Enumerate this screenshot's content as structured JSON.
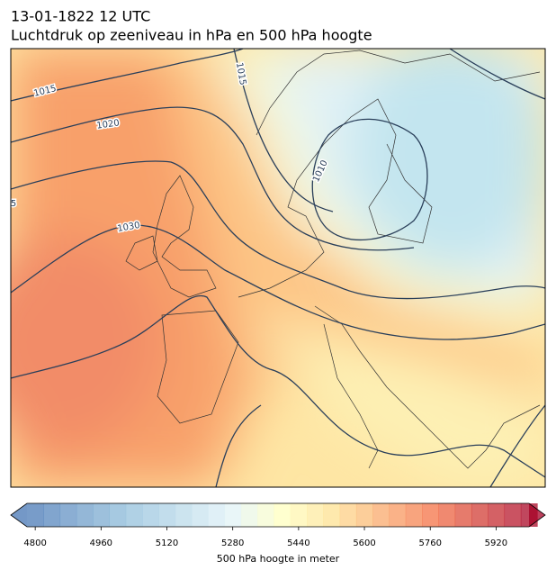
{
  "title": "13-01-1822 12 UTC",
  "subtitle": "Luchtdruk op zeeniveau in hPa en 500 hPa hoogte",
  "isobar_labels": [
    "1015",
    "1020",
    "1030",
    "1015",
    "1010",
    "5"
  ],
  "colorbar": {
    "lim": [
      4780,
      6000
    ],
    "step": 40,
    "ticks": [
      4800,
      4960,
      5120,
      5280,
      5440,
      5600,
      5760,
      5920
    ],
    "label": "500 hPa hoogte in meter"
  }
}
